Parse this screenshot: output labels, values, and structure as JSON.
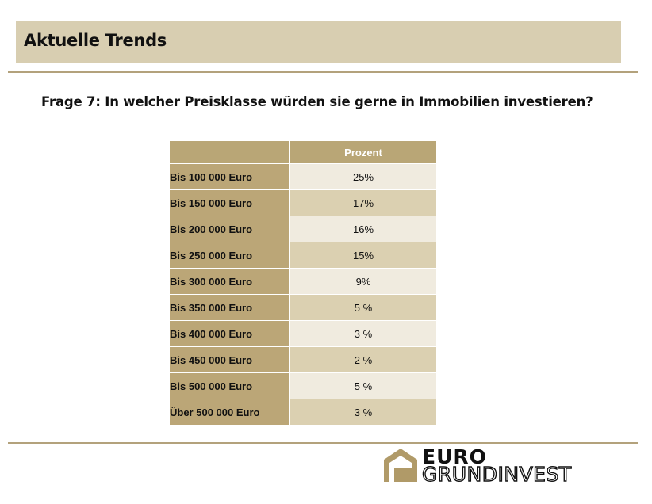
{
  "header": {
    "title": "Aktuelle Trends"
  },
  "question": "Frage 7: In welcher Preisklasse würden sie gerne in Immobilien investieren?",
  "table": {
    "columns": [
      "",
      "Prozent"
    ],
    "rows": [
      {
        "label": "Bis 100 000 Euro",
        "value": "25%"
      },
      {
        "label": "Bis 150 000 Euro",
        "value": "17%"
      },
      {
        "label": "Bis 200 000 Euro",
        "value": "16%"
      },
      {
        "label": "Bis 250 000 Euro",
        "value": "15%"
      },
      {
        "label": "Bis 300 000 Euro",
        "value": "9%"
      },
      {
        "label": "Bis 350 000 Euro",
        "value": "5 %"
      },
      {
        "label": "Bis 400 000 Euro",
        "value": "3 %"
      },
      {
        "label": "Bis 450 000 Euro",
        "value": "2 %"
      },
      {
        "label": "Bis 500 000 Euro",
        "value": "5 %"
      },
      {
        "label": "Über 500 000 Euro",
        "value": "3 %"
      }
    ]
  },
  "logo": {
    "line1": "EURO",
    "line2": "GRUNDINVEST"
  },
  "colors": {
    "accent": "#b9a676",
    "header_bg": "#d8ceb1",
    "rule": "#b3a27c",
    "row_light": "#f0ebdf",
    "row_dark": "#dbd0b1"
  }
}
